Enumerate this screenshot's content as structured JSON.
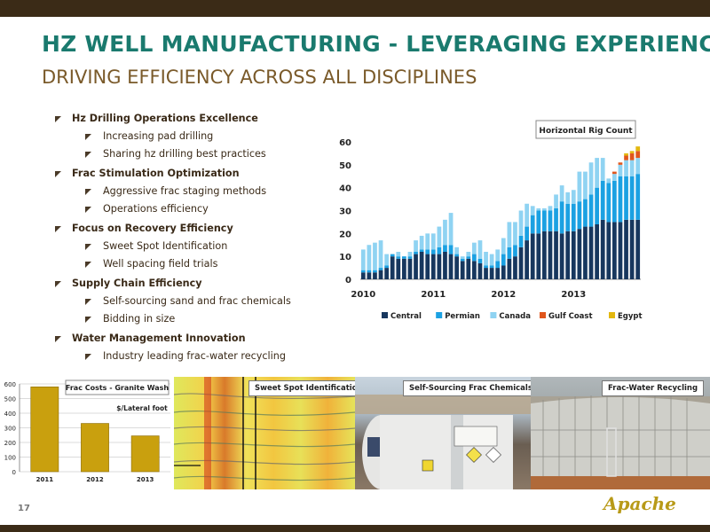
{
  "header": {
    "title": "HZ WELL MANUFACTURING - LEVERAGING EXPERIENCE",
    "subtitle": "DRIVING EFFICIENCY ACROSS ALL DISCIPLINES"
  },
  "bullets": [
    {
      "label": "Hz Drilling Operations Excellence",
      "items": [
        "Increasing pad drilling",
        "Sharing hz drilling best practices"
      ]
    },
    {
      "label": "Frac Stimulation Optimization",
      "items": [
        "Aggressive frac staging methods",
        "Operations efficiency"
      ]
    },
    {
      "label": "Focus on Recovery Efficiency",
      "items": [
        "Sweet Spot Identification",
        "Well spacing field trials"
      ]
    },
    {
      "label": "Supply Chain Efficiency",
      "items": [
        "Self-sourcing sand and frac chemicals",
        "Bidding in size"
      ]
    },
    {
      "label": "Water Management Innovation",
      "items": [
        "Industry leading frac-water recycling"
      ]
    }
  ],
  "chart_data": [
    {
      "type": "bar",
      "stacked": true,
      "title": "Horizontal Rig Count",
      "ylim": [
        0,
        60
      ],
      "yticks": [
        "0",
        "10",
        "20",
        "30",
        "40",
        "50",
        "60"
      ],
      "xticks": [
        "2010",
        "2011",
        "2012",
        "2013"
      ],
      "legend": "bottom",
      "colors": [
        "#17375e",
        "#1ba1e2",
        "#8fd3f2",
        "#e0561c",
        "#e3b80f"
      ],
      "series": [
        {
          "name": "Central",
          "values": [
            3,
            3,
            3,
            4,
            5,
            10,
            9,
            9,
            9,
            11,
            12,
            11,
            11,
            11,
            12,
            11,
            10,
            8,
            9,
            8,
            7,
            5,
            5,
            5,
            6,
            9,
            10,
            14,
            17,
            20,
            20,
            21,
            21,
            21,
            20,
            21,
            21,
            22,
            23,
            23,
            24,
            26,
            25,
            25,
            25,
            26,
            26,
            26
          ]
        },
        {
          "name": "Permian",
          "values": [
            1,
            1,
            1,
            1,
            1,
            1,
            1,
            1,
            1,
            1,
            1,
            2,
            2,
            3,
            3,
            4,
            1,
            1,
            1,
            3,
            2,
            1,
            1,
            3,
            5,
            5,
            5,
            5,
            6,
            8,
            10,
            9,
            9,
            10,
            14,
            12,
            12,
            12,
            12,
            14,
            16,
            17,
            17,
            18,
            20,
            19,
            19,
            20
          ]
        },
        {
          "name": "Canada",
          "values": [
            9,
            11,
            12,
            12,
            5,
            0,
            2,
            0,
            2,
            5,
            6,
            7,
            7,
            9,
            11,
            14,
            3,
            1,
            2,
            5,
            8,
            6,
            5,
            5,
            7,
            11,
            10,
            11,
            10,
            4,
            1,
            1,
            2,
            6,
            7,
            5,
            6,
            13,
            12,
            14,
            13,
            10,
            2,
            3,
            5,
            7,
            7,
            7
          ]
        },
        {
          "name": "Gulf Coast",
          "values": [
            0,
            0,
            0,
            0,
            0,
            0,
            0,
            0,
            0,
            0,
            0,
            0,
            0,
            0,
            0,
            0,
            0,
            0,
            0,
            0,
            0,
            0,
            0,
            0,
            0,
            0,
            0,
            0,
            0,
            0,
            0,
            0,
            0,
            0,
            0,
            0,
            0,
            0,
            0,
            0,
            0,
            0,
            0,
            1,
            1,
            2,
            3,
            3
          ]
        },
        {
          "name": "Egypt",
          "values": [
            0,
            0,
            0,
            0,
            0,
            0,
            0,
            0,
            0,
            0,
            0,
            0,
            0,
            0,
            0,
            0,
            0,
            0,
            0,
            0,
            0,
            0,
            0,
            0,
            0,
            0,
            0,
            0,
            0,
            0,
            0,
            0,
            0,
            0,
            0,
            0,
            0,
            0,
            0,
            0,
            0,
            0,
            0,
            0,
            0,
            1,
            1,
            2
          ]
        }
      ]
    },
    {
      "type": "bar",
      "title": "Frac Costs  - Granite Wash",
      "ylabel": "$/Lateral foot",
      "categories": [
        "2011",
        "2012",
        "2013"
      ],
      "values": [
        580,
        330,
        245
      ],
      "ylim": [
        0,
        600
      ],
      "yticks": [
        "0",
        "100",
        "200",
        "300",
        "400",
        "500",
        "600"
      ],
      "color": "#c9a00e"
    }
  ],
  "photos": [
    {
      "label": "Sweet Spot Identification"
    },
    {
      "label": "Self-Sourcing Frac Chemicals"
    },
    {
      "label": "Frac-Water Recycling"
    }
  ],
  "footer": {
    "page_number": "17",
    "logo": "Apache"
  }
}
